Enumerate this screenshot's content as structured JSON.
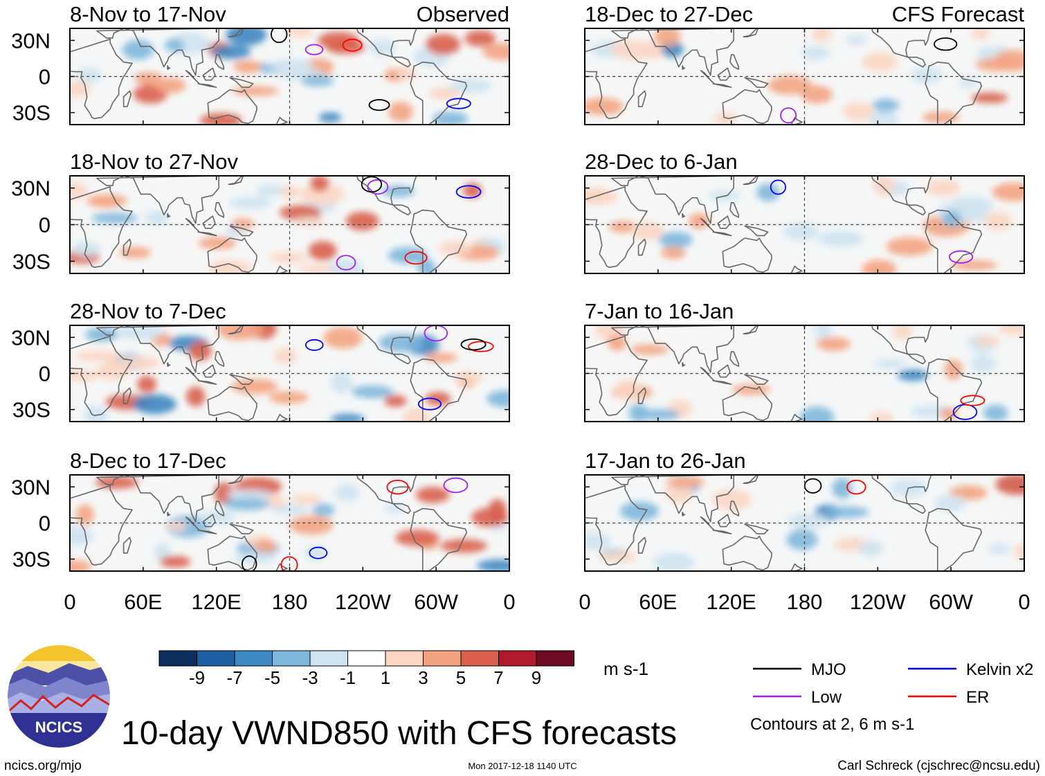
{
  "chart_data": {
    "type": "heatmap",
    "title": "10-day VWND850 with CFS forecasts",
    "variable": "VWND850",
    "units": "m s-1",
    "contour_note": "Contours at 2, 6 m s-1",
    "column_labels": [
      "Observed",
      "CFS Forecast"
    ],
    "panels": [
      {
        "period": "8-Nov to 17-Nov",
        "source": "Observed"
      },
      {
        "period": "18-Nov to 27-Nov",
        "source": "Observed"
      },
      {
        "period": "28-Nov to 7-Dec",
        "source": "Observed"
      },
      {
        "period": "8-Dec to 17-Dec",
        "source": "Observed"
      },
      {
        "period": "18-Dec to 27-Dec",
        "source": "CFS Forecast"
      },
      {
        "period": "28-Dec to 6-Jan",
        "source": "CFS Forecast"
      },
      {
        "period": "7-Jan to 16-Jan",
        "source": "CFS Forecast"
      },
      {
        "period": "17-Jan to 26-Jan",
        "source": "CFS Forecast"
      }
    ],
    "y_ticks": [
      "30N",
      "0",
      "30S"
    ],
    "x_ticks": [
      "0",
      "60E",
      "120E",
      "180",
      "120W",
      "60W",
      "0"
    ],
    "xlim": [
      0,
      360
    ],
    "ylim": [
      -40,
      40
    ],
    "colorbar": {
      "tick_labels": [
        "-9",
        "-7",
        "-5",
        "-3",
        "-1",
        "1",
        "3",
        "5",
        "7",
        "9"
      ],
      "colors": [
        "#0c2d5e",
        "#1f5fa6",
        "#3d87c1",
        "#80b7dc",
        "#cfe3f0",
        "#ffffff",
        "#fbd6c4",
        "#f3a482",
        "#d9604c",
        "#b0182b",
        "#6b0a20"
      ]
    },
    "legend": [
      {
        "label": "MJO",
        "color": "#000000"
      },
      {
        "label": "Low",
        "color": "#a020f0"
      },
      {
        "label": "Kelvin x2",
        "color": "#0000ff"
      },
      {
        "label": "ER",
        "color": "#ff0000"
      }
    ]
  },
  "branding": {
    "logo_text": "NCICS",
    "site": "ncics.org/mjo",
    "timestamp": "Mon 2017-12-18 1140 UTC",
    "author": "Carl Schreck (cjschrec@ncsu.edu)"
  }
}
